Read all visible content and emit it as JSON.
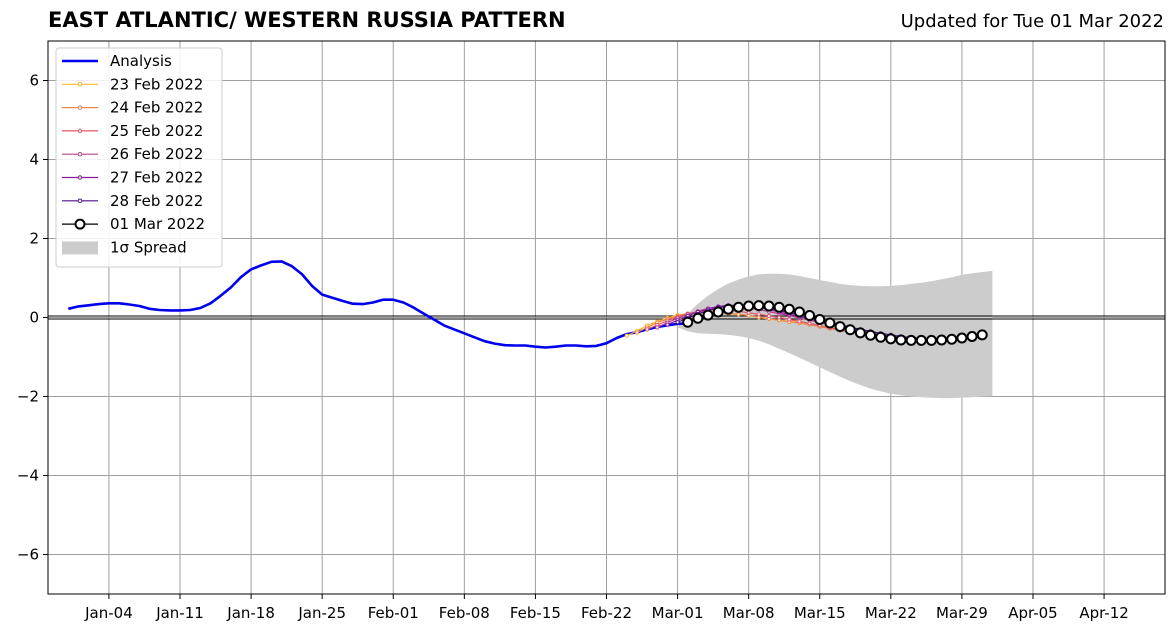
{
  "header": {
    "title": "EAST ATLANTIC/ WESTERN RUSSIA PATTERN",
    "subtitle": "Updated for Tue 01 Mar 2022"
  },
  "chart_data": {
    "type": "line",
    "title": "EAST ATLANTIC/ WESTERN RUSSIA PATTERN",
    "subtitle": "Updated for Tue 01 Mar 2022",
    "xlabel": "",
    "ylabel": "",
    "xlim": [
      "2021-12-29",
      "2022-04-18"
    ],
    "ylim": [
      -7,
      7
    ],
    "yticks": [
      -6,
      -4,
      -2,
      0,
      2,
      4,
      6
    ],
    "ytick_labels": [
      "−6",
      "−4",
      "−2",
      "0",
      "2",
      "4",
      "6"
    ],
    "xticks": [
      "2022-01-04",
      "2022-01-11",
      "2022-01-18",
      "2022-01-25",
      "2022-02-01",
      "2022-02-08",
      "2022-02-15",
      "2022-02-22",
      "2022-03-01",
      "2022-03-08",
      "2022-03-15",
      "2022-03-22",
      "2022-03-29",
      "2022-04-05",
      "2022-04-12"
    ],
    "xtick_labels": [
      "Jan-04",
      "Jan-11",
      "Jan-18",
      "Jan-25",
      "Feb-01",
      "Feb-08",
      "Feb-15",
      "Feb-22",
      "Mar-01",
      "Mar-08",
      "Mar-15",
      "Mar-22",
      "Mar-29",
      "Apr-05",
      "Apr-12"
    ],
    "grid": true,
    "zero_line": true,
    "legend_position": "top-left",
    "legend": [
      "Analysis",
      "23 Feb 2022",
      "24 Feb 2022",
      "25 Feb 2022",
      "26 Feb 2022",
      "27 Feb 2022",
      "28 Feb 2022",
      "01 Mar 2022",
      "1σ Spread"
    ],
    "series": [
      {
        "name": "Analysis",
        "color": "#0000ee",
        "start": "2021-12-31",
        "values": [
          0.22,
          0.28,
          0.31,
          0.34,
          0.36,
          0.36,
          0.33,
          0.29,
          0.22,
          0.19,
          0.18,
          0.18,
          0.19,
          0.24,
          0.36,
          0.55,
          0.76,
          1.02,
          1.22,
          1.32,
          1.41,
          1.42,
          1.3,
          1.1,
          0.8,
          0.58,
          0.5,
          0.42,
          0.35,
          0.34,
          0.38,
          0.45,
          0.45,
          0.38,
          0.25,
          0.1,
          -0.05,
          -0.2,
          -0.3,
          -0.4,
          -0.5,
          -0.6,
          -0.66,
          -0.7,
          -0.71,
          -0.71,
          -0.74,
          -0.76,
          -0.74,
          -0.71,
          -0.71,
          -0.73,
          -0.72,
          -0.65,
          -0.52,
          -0.42,
          -0.37,
          -0.3,
          -0.24,
          -0.2,
          -0.16,
          -0.15
        ]
      },
      {
        "name": "23 Feb 2022",
        "color": "#fbb829",
        "start": "2022-02-24",
        "values": [
          -0.46,
          -0.34,
          -0.2,
          -0.1,
          -0.01,
          0.06,
          0.1,
          0.12,
          0.12,
          0.11,
          0.1,
          0.08,
          0.05,
          0.0,
          -0.04,
          -0.07,
          -0.1,
          -0.13,
          -0.16,
          -0.2,
          -0.25,
          -0.3,
          -0.34,
          -0.37,
          -0.4
        ]
      },
      {
        "name": "24 Feb 2022",
        "color": "#f2844a",
        "start": "2022-02-25",
        "values": [
          -0.38,
          -0.25,
          -0.13,
          -0.04,
          0.04,
          0.1,
          0.13,
          0.14,
          0.13,
          0.11,
          0.08,
          0.05,
          0.01,
          -0.03,
          -0.07,
          -0.11,
          -0.14,
          -0.18,
          -0.23,
          -0.28,
          -0.33,
          -0.37,
          -0.4,
          -0.42,
          -0.44
        ]
      },
      {
        "name": "25 Feb 2022",
        "color": "#e0576b",
        "start": "2022-02-26",
        "values": [
          -0.3,
          -0.19,
          -0.08,
          0.01,
          0.09,
          0.15,
          0.19,
          0.2,
          0.19,
          0.16,
          0.12,
          0.08,
          0.04,
          0.0,
          -0.05,
          -0.1,
          -0.15,
          -0.2,
          -0.26,
          -0.31,
          -0.36,
          -0.4,
          -0.43,
          -0.46,
          -0.48
        ]
      },
      {
        "name": "26 Feb 2022",
        "color": "#b8418d",
        "start": "2022-02-27",
        "values": [
          -0.25,
          -0.13,
          -0.02,
          0.08,
          0.16,
          0.23,
          0.27,
          0.28,
          0.27,
          0.24,
          0.2,
          0.15,
          0.1,
          0.05,
          -0.01,
          -0.07,
          -0.13,
          -0.19,
          -0.25,
          -0.31,
          -0.36,
          -0.41,
          -0.45,
          -0.48,
          -0.5
        ]
      },
      {
        "name": "27 Feb 2022",
        "color": "#8a1aa0",
        "start": "2022-02-28",
        "values": [
          -0.18,
          -0.07,
          0.04,
          0.14,
          0.22,
          0.28,
          0.31,
          0.31,
          0.29,
          0.25,
          0.2,
          0.14,
          0.08,
          0.02,
          -0.04,
          -0.1,
          -0.16,
          -0.22,
          -0.28,
          -0.34,
          -0.39,
          -0.44,
          -0.47,
          -0.5,
          -0.52
        ]
      },
      {
        "name": "28 Feb 2022",
        "color": "#4b0f8f",
        "start": "2022-03-01",
        "values": [
          -0.12,
          -0.02,
          0.09,
          0.18,
          0.25,
          0.29,
          0.31,
          0.3,
          0.27,
          0.23,
          0.18,
          0.12,
          0.06,
          0.0,
          -0.06,
          -0.12,
          -0.18,
          -0.24,
          -0.3,
          -0.35,
          -0.4,
          -0.44,
          -0.48,
          -0.51,
          -0.53
        ]
      },
      {
        "name": "01 Mar 2022",
        "color": "#000000",
        "start": "2022-03-02",
        "values": [
          -0.12,
          -0.02,
          0.06,
          0.14,
          0.21,
          0.26,
          0.29,
          0.3,
          0.29,
          0.26,
          0.21,
          0.14,
          0.05,
          -0.05,
          -0.14,
          -0.23,
          -0.31,
          -0.39,
          -0.45,
          -0.5,
          -0.54,
          -0.57,
          -0.58,
          -0.58,
          -0.58,
          -0.57,
          -0.55,
          -0.52,
          -0.48,
          -0.44
        ]
      }
    ],
    "spread": {
      "name": "1σ Spread",
      "color": "#cccccc",
      "start": "2022-03-01",
      "upper": [
        -0.25,
        0.1,
        0.35,
        0.55,
        0.72,
        0.86,
        0.96,
        1.04,
        1.09,
        1.11,
        1.11,
        1.09,
        1.05,
        1.0,
        0.95,
        0.9,
        0.85,
        0.82,
        0.8,
        0.79,
        0.79,
        0.8,
        0.82,
        0.85,
        0.88,
        0.92,
        0.97,
        1.02,
        1.08,
        1.12,
        1.15,
        1.18
      ],
      "lower": [
        -0.25,
        -0.35,
        -0.4,
        -0.41,
        -0.42,
        -0.44,
        -0.47,
        -0.52,
        -0.59,
        -0.68,
        -0.79,
        -0.9,
        -1.02,
        -1.14,
        -1.26,
        -1.38,
        -1.5,
        -1.61,
        -1.71,
        -1.8,
        -1.87,
        -1.93,
        -1.97,
        -2.0,
        -2.02,
        -2.03,
        -2.04,
        -2.04,
        -2.03,
        -2.02,
        -2.0,
        -1.99
      ]
    }
  }
}
